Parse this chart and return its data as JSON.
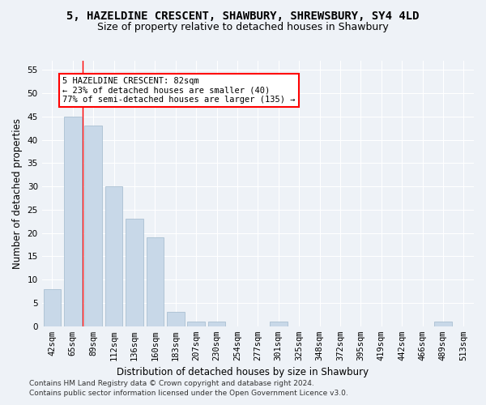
{
  "title": "5, HAZELDINE CRESCENT, SHAWBURY, SHREWSBURY, SY4 4LD",
  "subtitle": "Size of property relative to detached houses in Shawbury",
  "xlabel": "Distribution of detached houses by size in Shawbury",
  "ylabel": "Number of detached properties",
  "categories": [
    "42sqm",
    "65sqm",
    "89sqm",
    "112sqm",
    "136sqm",
    "160sqm",
    "183sqm",
    "207sqm",
    "230sqm",
    "254sqm",
    "277sqm",
    "301sqm",
    "325sqm",
    "348sqm",
    "372sqm",
    "395sqm",
    "419sqm",
    "442sqm",
    "466sqm",
    "489sqm",
    "513sqm"
  ],
  "values": [
    8,
    45,
    43,
    30,
    23,
    19,
    3,
    1,
    1,
    0,
    0,
    1,
    0,
    0,
    0,
    0,
    0,
    0,
    0,
    1,
    0
  ],
  "bar_color": "#c8d8e8",
  "bar_edge_color": "#a0b8cc",
  "bar_width": 0.85,
  "ylim": [
    0,
    57
  ],
  "yticks": [
    0,
    5,
    10,
    15,
    20,
    25,
    30,
    35,
    40,
    45,
    50,
    55
  ],
  "red_line_x": 1.5,
  "annotation_text": "5 HAZELDINE CRESCENT: 82sqm\n← 23% of detached houses are smaller (40)\n77% of semi-detached houses are larger (135) →",
  "footnote1": "Contains HM Land Registry data © Crown copyright and database right 2024.",
  "footnote2": "Contains public sector information licensed under the Open Government Licence v3.0.",
  "background_color": "#eef2f7",
  "plot_bg_color": "#eef2f7",
  "grid_color": "#ffffff",
  "title_fontsize": 10,
  "subtitle_fontsize": 9,
  "axis_label_fontsize": 8.5,
  "tick_fontsize": 7.5,
  "footnote_fontsize": 6.5
}
